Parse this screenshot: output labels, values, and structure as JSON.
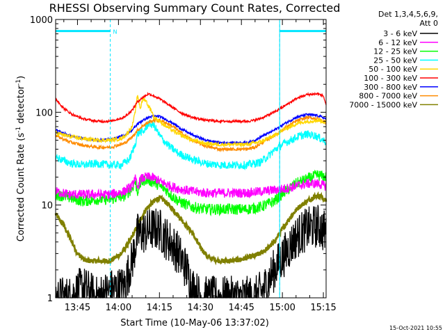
{
  "chart_data": {
    "type": "line",
    "title": "RHESSI Observing Summary Count Rates, Corrected",
    "xlabel": "Start Time (10-May-06 13:37:02)",
    "ylabel_prefix": "Corrected Count Rate (s",
    "ylabel_mid": " detector",
    "ylabel_suffix": ")",
    "ylabel_exp": "-1",
    "yscale": "log",
    "ylim": [
      1,
      1000
    ],
    "xlim_minutes": [
      0,
      99
    ],
    "x_ticks": [
      {
        "label": "13:45",
        "minute": 8
      },
      {
        "label": "14:00",
        "minute": 23
      },
      {
        "label": "14:15",
        "minute": 38
      },
      {
        "label": "14:30",
        "minute": 53
      },
      {
        "label": "14:45",
        "minute": 68
      },
      {
        "label": "15:00",
        "minute": 83
      },
      {
        "label": "15:15",
        "minute": 98
      }
    ],
    "y_ticks": [
      {
        "label": "1",
        "value": 1
      },
      {
        "label": "10",
        "value": 10
      },
      {
        "label": "100",
        "value": 100
      },
      {
        "label": "1000",
        "value": 1000
      }
    ],
    "legend_header": [
      "Det 1,3,4,5,6,9,",
      "Att 0"
    ],
    "legend_placement": "top-right-outside",
    "footer_date": "15-Oct-2021 10:55",
    "markers": {
      "night_start": 20,
      "night_end": 82,
      "bar_left": [
        0,
        20
      ],
      "bar_right": [
        82,
        99
      ],
      "bar_value": 750,
      "flag_label": "N",
      "flag_minute": 21
    },
    "series": [
      {
        "name": "3 - 6 keV",
        "color": "#000000",
        "x": [
          0,
          5,
          10,
          15,
          20,
          25,
          28,
          30,
          32,
          35,
          38,
          40,
          42,
          45,
          48,
          50,
          53,
          55,
          60,
          65,
          70,
          73,
          76,
          80,
          84,
          88,
          92,
          96,
          99
        ],
        "y": [
          1.0,
          1.0,
          1.3,
          1.0,
          1.2,
          1.3,
          2.5,
          4.8,
          5.0,
          5.5,
          5.5,
          4.5,
          4.0,
          3.0,
          2.0,
          1.3,
          1.0,
          1.0,
          1.0,
          1.0,
          1.0,
          1.0,
          1.2,
          2.0,
          3.0,
          4.5,
          5.5,
          6.0,
          5.0
        ]
      },
      {
        "name": "6 - 12 keV",
        "color": "#ff00ff",
        "x": [
          0,
          5,
          10,
          15,
          20,
          25,
          28,
          29,
          30,
          31,
          33,
          35,
          37,
          38,
          40,
          42,
          45,
          50,
          55,
          60,
          65,
          70,
          75,
          80,
          84,
          88,
          92,
          96,
          99
        ],
        "y": [
          14,
          13,
          13,
          13,
          13,
          14,
          16,
          20,
          15,
          19,
          20,
          20,
          19,
          18,
          17,
          16,
          15,
          14,
          13.5,
          13.5,
          13.5,
          13.5,
          14,
          14.5,
          15,
          16,
          17,
          17,
          16
        ]
      },
      {
        "name": "12 - 25 keV",
        "color": "#00ff00",
        "x": [
          0,
          5,
          10,
          15,
          20,
          25,
          28,
          29,
          30,
          31,
          33,
          35,
          37,
          38,
          40,
          42,
          45,
          50,
          55,
          60,
          65,
          70,
          75,
          80,
          84,
          88,
          92,
          96,
          99
        ],
        "y": [
          13,
          12,
          11,
          11.5,
          11.5,
          12.5,
          15,
          18,
          14,
          17,
          19,
          18,
          17,
          16,
          15,
          13,
          11,
          9.5,
          9,
          9,
          9,
          9,
          9.5,
          11,
          14,
          17,
          19,
          21,
          20
        ]
      },
      {
        "name": "25 - 50 keV",
        "color": "#00ffff",
        "x": [
          0,
          3,
          6,
          10,
          15,
          20,
          24,
          27,
          29,
          30,
          31,
          32,
          33,
          34,
          35,
          36,
          37,
          38,
          40,
          42,
          45,
          50,
          55,
          60,
          65,
          70,
          75,
          78,
          80,
          83,
          86,
          89,
          92,
          95,
          97,
          99
        ],
        "y": [
          33,
          30,
          28,
          27,
          28,
          27,
          27,
          31,
          44,
          58,
          62,
          60,
          68,
          76,
          74,
          72,
          64,
          56,
          48,
          42,
          36,
          31,
          28,
          27,
          27,
          27,
          29,
          34,
          39,
          45,
          50,
          55,
          58,
          56,
          52,
          48
        ]
      },
      {
        "name": "50 - 100 keV",
        "color": "#ffd700",
        "x": [
          0,
          5,
          10,
          15,
          20,
          24,
          26,
          28,
          29,
          30,
          31,
          32,
          33,
          34,
          35,
          36,
          37,
          38,
          40,
          42,
          45,
          50,
          55,
          60,
          65,
          70,
          75,
          80,
          84,
          88,
          92,
          96,
          99
        ],
        "y": [
          60,
          55,
          52,
          50,
          50,
          52,
          58,
          70,
          95,
          155,
          110,
          140,
          135,
          115,
          105,
          88,
          85,
          80,
          72,
          66,
          58,
          50,
          46,
          45,
          45,
          45,
          48,
          56,
          66,
          75,
          80,
          82,
          78
        ]
      },
      {
        "name": "100 - 300 keV",
        "color": "#ff0000",
        "x": [
          0,
          3,
          6,
          10,
          15,
          20,
          25,
          28,
          30,
          32,
          34,
          36,
          38,
          40,
          43,
          46,
          50,
          55,
          60,
          65,
          70,
          73,
          76,
          80,
          84,
          88,
          92,
          96,
          98,
          99
        ],
        "y": [
          140,
          110,
          95,
          85,
          80,
          80,
          88,
          105,
          130,
          145,
          158,
          150,
          140,
          128,
          112,
          98,
          88,
          82,
          80,
          80,
          80,
          82,
          88,
          100,
          118,
          140,
          155,
          158,
          150,
          120
        ]
      },
      {
        "name": "300 - 800 keV",
        "color": "#0000ff",
        "x": [
          0,
          5,
          10,
          15,
          20,
          25,
          28,
          30,
          32,
          34,
          36,
          38,
          40,
          43,
          46,
          50,
          55,
          60,
          65,
          70,
          73,
          76,
          80,
          84,
          88,
          92,
          96,
          99
        ],
        "y": [
          65,
          56,
          52,
          50,
          51,
          56,
          64,
          75,
          82,
          88,
          91,
          90,
          85,
          76,
          66,
          57,
          50,
          47,
          47,
          47,
          50,
          56,
          64,
          76,
          88,
          95,
          92,
          85
        ]
      },
      {
        "name": "800 - 7000 keV",
        "color": "#ff8c00",
        "x": [
          0,
          5,
          10,
          15,
          20,
          25,
          28,
          30,
          32,
          34,
          36,
          38,
          40,
          43,
          46,
          50,
          55,
          60,
          65,
          70,
          73,
          76,
          80,
          84,
          88,
          92,
          96,
          99
        ],
        "y": [
          56,
          48,
          44,
          42,
          42,
          46,
          54,
          64,
          72,
          78,
          82,
          82,
          78,
          70,
          60,
          50,
          43,
          40,
          40,
          40,
          42,
          48,
          56,
          68,
          80,
          88,
          85,
          78
        ]
      },
      {
        "name": "7000 - 15000 keV",
        "color": "#808000",
        "x": [
          0,
          3,
          6,
          8,
          11,
          15,
          18,
          20,
          24,
          27,
          30,
          33,
          36,
          38,
          40,
          43,
          46,
          50,
          53,
          56,
          60,
          64,
          68,
          72,
          75,
          78,
          80,
          83,
          86,
          89,
          92,
          95,
          97,
          99
        ],
        "y": [
          8.0,
          6.0,
          4.0,
          3.0,
          2.5,
          2.5,
          2.5,
          2.5,
          3.0,
          4.0,
          6.0,
          9.0,
          11.0,
          12.0,
          11.0,
          9.0,
          7.0,
          5.0,
          3.5,
          2.7,
          2.5,
          2.5,
          2.6,
          2.8,
          3.0,
          3.5,
          4.0,
          5.5,
          7.5,
          9.5,
          11.0,
          12.5,
          12.5,
          11.0
        ]
      }
    ]
  }
}
